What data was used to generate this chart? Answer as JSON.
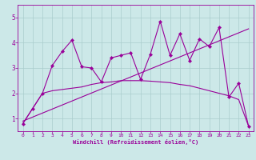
{
  "xlabel": "Windchill (Refroidissement éolien,°C)",
  "bg_color": "#cce8e8",
  "line_color": "#990099",
  "grid_color": "#aacccc",
  "xlim": [
    -0.5,
    23.5
  ],
  "ylim": [
    0.5,
    5.5
  ],
  "yticks": [
    1,
    2,
    3,
    4,
    5
  ],
  "xticks": [
    0,
    1,
    2,
    3,
    4,
    5,
    6,
    7,
    8,
    9,
    10,
    11,
    12,
    13,
    14,
    15,
    16,
    17,
    18,
    19,
    20,
    21,
    22,
    23
  ],
  "line_jagged_x": [
    0,
    1,
    2,
    3,
    4,
    5,
    6,
    7,
    8,
    9,
    10,
    11,
    12,
    13,
    14,
    15,
    16,
    17,
    18,
    19,
    20,
    21,
    22,
    23
  ],
  "line_jagged_y": [
    0.8,
    1.4,
    2.0,
    3.1,
    3.65,
    4.1,
    3.05,
    3.0,
    2.45,
    3.4,
    3.5,
    3.6,
    2.55,
    3.55,
    4.85,
    3.5,
    4.35,
    3.3,
    4.15,
    3.85,
    4.6,
    1.85,
    2.4,
    0.7
  ],
  "line_smooth_x": [
    0,
    1,
    2,
    3,
    4,
    5,
    6,
    7,
    8,
    9,
    10,
    11,
    12,
    13,
    14,
    15,
    16,
    17,
    18,
    19,
    20,
    21,
    22,
    23
  ],
  "line_smooth_y": [
    0.8,
    1.4,
    2.0,
    2.1,
    2.15,
    2.2,
    2.25,
    2.35,
    2.42,
    2.45,
    2.5,
    2.5,
    2.5,
    2.48,
    2.45,
    2.42,
    2.35,
    2.3,
    2.2,
    2.1,
    2.0,
    1.9,
    1.75,
    0.7
  ],
  "line_trend_x": [
    0,
    23
  ],
  "line_trend_y": [
    0.9,
    4.55
  ]
}
